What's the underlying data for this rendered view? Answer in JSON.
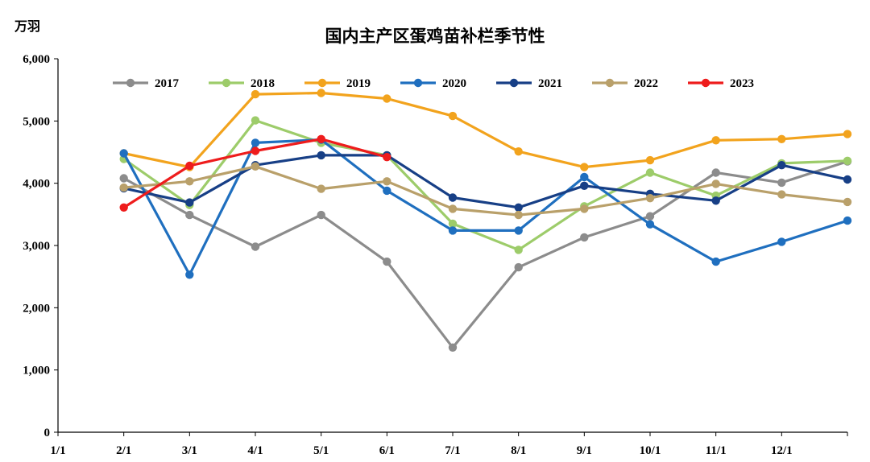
{
  "chart_data": {
    "type": "line",
    "title": "国内主产区蛋鸡苗补栏季节性",
    "ylabel": "万羽",
    "xlabel": "",
    "ylim": [
      0,
      6000
    ],
    "yticks": [
      "0",
      "1,000",
      "2,000",
      "3,000",
      "4,000",
      "5,000",
      "6,000"
    ],
    "categories": [
      "1/1",
      "2/1",
      "3/1",
      "4/1",
      "5/1",
      "6/1",
      "7/1",
      "8/1",
      "9/1",
      "10/1",
      "11/1",
      "12/1"
    ],
    "legend_position": "top",
    "grid": false,
    "series": [
      {
        "name": "2017",
        "color": "#8c8c8c",
        "values": [
          4080,
          3490,
          2980,
          3490,
          2740,
          1360,
          2650,
          3130,
          3470,
          4170,
          4010,
          4350
        ]
      },
      {
        "name": "2018",
        "color": "#9dcc6a",
        "values": [
          4390,
          3650,
          5010,
          4650,
          4450,
          3350,
          2930,
          3630,
          4170,
          3800,
          4320,
          4360
        ]
      },
      {
        "name": "2019",
        "color": "#f2a31d",
        "values": [
          4480,
          4260,
          5430,
          5450,
          5360,
          5080,
          4510,
          4260,
          4370,
          4690,
          4710,
          4790
        ]
      },
      {
        "name": "2020",
        "color": "#1f6fbf",
        "values": [
          4480,
          2530,
          4650,
          4700,
          3880,
          3240,
          3240,
          4100,
          3340,
          2740,
          3060,
          3400
        ]
      },
      {
        "name": "2021",
        "color": "#173f86",
        "values": [
          3920,
          3690,
          4290,
          4450,
          4450,
          3770,
          3610,
          3960,
          3830,
          3720,
          4290,
          4060
        ]
      },
      {
        "name": "2022",
        "color": "#b9a06a",
        "values": [
          3930,
          4030,
          4270,
          3910,
          4030,
          3590,
          3490,
          3590,
          3760,
          3990,
          3820,
          3700
        ]
      },
      {
        "name": "2023",
        "color": "#ee1c1c",
        "values": [
          3610,
          4280,
          4520,
          4710,
          4420,
          null,
          null,
          null,
          null,
          null,
          null,
          null
        ]
      }
    ]
  }
}
